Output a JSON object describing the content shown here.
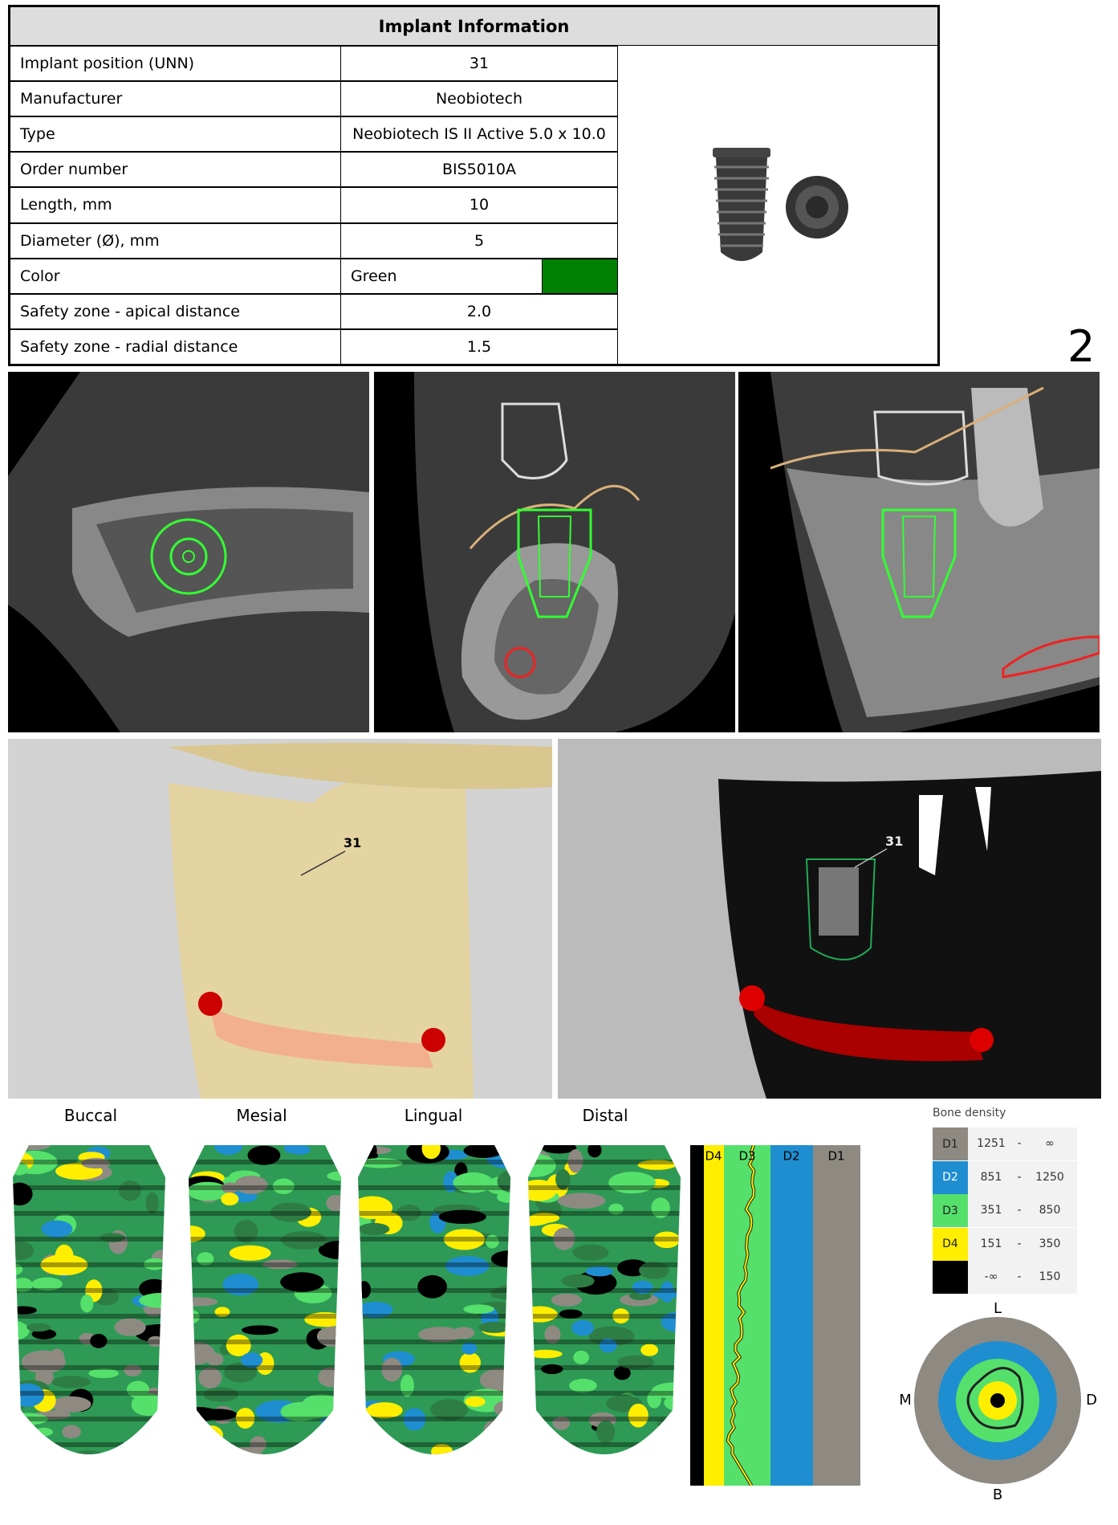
{
  "table": {
    "title": "Implant  Information",
    "rows": [
      [
        "Implant position (UNN)",
        "31"
      ],
      [
        "Manufacturer",
        "Neobiotech"
      ],
      [
        "Type",
        "Neobiotech IS II Active 5.0 x 10.0"
      ],
      [
        "Order number",
        "BIS5010A"
      ],
      [
        "Length, mm",
        "10"
      ],
      [
        "Diameter (Ø), mm",
        "5"
      ],
      [
        "Color",
        "Green"
      ],
      [
        "Safety zone - apical distance",
        "2.0"
      ],
      [
        "Safety zone - radial distance",
        "1.5"
      ]
    ]
  },
  "page_number": "2",
  "views": {
    "labels": [
      "31",
      "31"
    ]
  },
  "sections": [
    "Buccal",
    "Mesial",
    "Lingual",
    "Distal"
  ],
  "density_strip": [
    "D4",
    "D3",
    "D2",
    "D1"
  ],
  "legend": {
    "title": "Bone density",
    "rows": [
      {
        "class": "D1",
        "from": "1251",
        "sep": "-",
        "to": "∞"
      },
      {
        "class": "D2",
        "from": "851",
        "sep": "-",
        "to": "1250"
      },
      {
        "class": "D3",
        "from": "351",
        "sep": "-",
        "to": "850"
      },
      {
        "class": "D4",
        "from": "151",
        "sep": "-",
        "to": "350"
      },
      {
        "class": "",
        "from": "-∞",
        "sep": "-",
        "to": "150"
      }
    ]
  },
  "compass": {
    "top": "L",
    "left": "M",
    "right": "D",
    "bottom": "B"
  }
}
